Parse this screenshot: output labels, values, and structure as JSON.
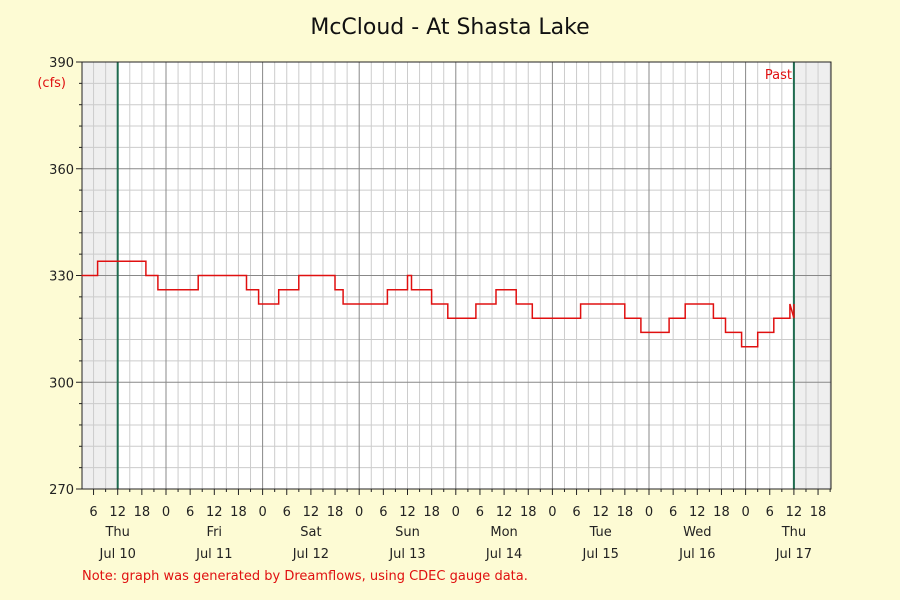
{
  "chart_data": {
    "type": "line",
    "title": "McCloud - At Shasta Lake",
    "unit_label": "(cfs)",
    "ylim": [
      270,
      390
    ],
    "yticks": [
      270,
      300,
      330,
      360,
      390
    ],
    "x_hours_per_day_labels": [
      "0",
      "6",
      "12",
      "18"
    ],
    "days": [
      {
        "dow": "Thu",
        "date": "Jul 10"
      },
      {
        "dow": "Fri",
        "date": "Jul 11"
      },
      {
        "dow": "Sat",
        "date": "Jul 12"
      },
      {
        "dow": "Sun",
        "date": "Jul 13"
      },
      {
        "dow": "Mon",
        "date": "Jul 14"
      },
      {
        "dow": "Tue",
        "date": "Jul 15"
      },
      {
        "dow": "Wed",
        "date": "Jul 16"
      },
      {
        "dow": "Thu",
        "date": "Jul 17"
      }
    ],
    "past_label": "Past",
    "grid": true,
    "series": [
      {
        "color": "#e01010",
        "points": [
          [
            "Jul 10 03:00",
            330
          ],
          [
            "Jul 10 07:00",
            330
          ],
          [
            "Jul 10 07:00",
            334
          ],
          [
            "Jul 10 19:00",
            334
          ],
          [
            "Jul 10 19:00",
            330
          ],
          [
            "Jul 10 22:00",
            330
          ],
          [
            "Jul 10 22:00",
            326
          ],
          [
            "Jul 11 08:00",
            326
          ],
          [
            "Jul 11 08:00",
            330
          ],
          [
            "Jul 11 20:00",
            330
          ],
          [
            "Jul 11 20:00",
            326
          ],
          [
            "Jul 11 23:00",
            326
          ],
          [
            "Jul 11 23:00",
            322
          ],
          [
            "Jul 12 04:00",
            322
          ],
          [
            "Jul 12 04:00",
            326
          ],
          [
            "Jul 12 09:00",
            326
          ],
          [
            "Jul 12 09:00",
            330
          ],
          [
            "Jul 12 18:00",
            330
          ],
          [
            "Jul 12 18:00",
            326
          ],
          [
            "Jul 12 20:00",
            326
          ],
          [
            "Jul 12 20:00",
            322
          ],
          [
            "Jul 13 07:00",
            322
          ],
          [
            "Jul 13 07:00",
            326
          ],
          [
            "Jul 13 12:00",
            326
          ],
          [
            "Jul 13 12:00",
            330
          ],
          [
            "Jul 13 13:00",
            330
          ],
          [
            "Jul 13 13:00",
            326
          ],
          [
            "Jul 13 18:00",
            326
          ],
          [
            "Jul 13 18:00",
            322
          ],
          [
            "Jul 13 22:00",
            322
          ],
          [
            "Jul 13 22:00",
            318
          ],
          [
            "Jul 14 05:00",
            318
          ],
          [
            "Jul 14 05:00",
            322
          ],
          [
            "Jul 14 10:00",
            322
          ],
          [
            "Jul 14 10:00",
            326
          ],
          [
            "Jul 14 15:00",
            326
          ],
          [
            "Jul 14 15:00",
            322
          ],
          [
            "Jul 14 19:00",
            322
          ],
          [
            "Jul 14 19:00",
            318
          ],
          [
            "Jul 15 07:00",
            318
          ],
          [
            "Jul 15 07:00",
            322
          ],
          [
            "Jul 15 18:00",
            322
          ],
          [
            "Jul 15 18:00",
            318
          ],
          [
            "Jul 15 22:00",
            318
          ],
          [
            "Jul 15 22:00",
            314
          ],
          [
            "Jul 16 05:00",
            314
          ],
          [
            "Jul 16 05:00",
            318
          ],
          [
            "Jul 16 09:00",
            318
          ],
          [
            "Jul 16 09:00",
            322
          ],
          [
            "Jul 16 16:00",
            322
          ],
          [
            "Jul 16 16:00",
            318
          ],
          [
            "Jul 16 19:00",
            318
          ],
          [
            "Jul 16 19:00",
            314
          ],
          [
            "Jul 16 23:00",
            314
          ],
          [
            "Jul 16 23:00",
            310
          ],
          [
            "Jul 17 03:00",
            310
          ],
          [
            "Jul 17 03:00",
            314
          ],
          [
            "Jul 17 07:00",
            314
          ],
          [
            "Jul 17 07:00",
            318
          ],
          [
            "Jul 17 11:00",
            318
          ],
          [
            "Jul 17 11:00",
            322
          ],
          [
            "Jul 17 12:00",
            318
          ],
          [
            "Jul 17 12:00",
            322
          ]
        ]
      }
    ]
  },
  "note": "Note: graph was generated by Dreamflows, using CDEC gauge data."
}
